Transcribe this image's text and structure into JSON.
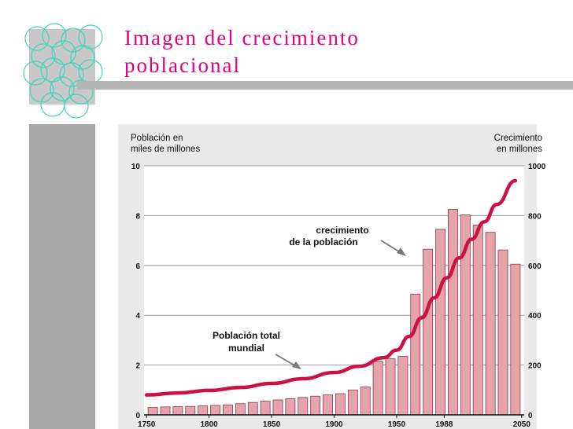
{
  "slide": {
    "title_line1": "Imagen del crecimiento",
    "title_line2": "poblacional"
  },
  "colors": {
    "accent": "#e6007e",
    "bar_fill": "#e7a3ab",
    "bar_stroke": "#8b3c45",
    "line": "#cc1144",
    "panel": "#e9e9e9",
    "deco_circles": "#3dd6b8"
  },
  "chart_data": {
    "type": "bar",
    "left_axis_title": [
      "Población en",
      "miles de millones"
    ],
    "right_axis_title": [
      "Crecimiento",
      "en millones"
    ],
    "x_ticks": [
      1750,
      1800,
      1850,
      1900,
      1950,
      1988,
      2050
    ],
    "xlim": [
      1748,
      2052
    ],
    "y_left_ticks": [
      0,
      2,
      4,
      6,
      8,
      10
    ],
    "y_left_lim": [
      0,
      10
    ],
    "y_right_ticks": [
      0,
      200,
      400,
      600,
      800,
      1000
    ],
    "y_right_lim": [
      0,
      1000
    ],
    "grid": true,
    "series": [
      {
        "name": "crecimiento de la población",
        "kind": "bar",
        "axis": "right",
        "x": [
          1755,
          1765,
          1775,
          1785,
          1795,
          1805,
          1815,
          1825,
          1835,
          1845,
          1855,
          1865,
          1875,
          1885,
          1895,
          1905,
          1915,
          1925,
          1935,
          1945,
          1955,
          1965,
          1975,
          1985,
          1995,
          2005,
          2015,
          2025,
          2035,
          2045
        ],
        "values": [
          30,
          32,
          33,
          34,
          36,
          38,
          40,
          45,
          50,
          55,
          60,
          65,
          70,
          75,
          80,
          85,
          100,
          112,
          215,
          225,
          235,
          485,
          665,
          745,
          825,
          803,
          762,
          733,
          662,
          605
        ]
      },
      {
        "name": "Población total mundial",
        "kind": "line",
        "axis": "left",
        "x": [
          1750,
          1775,
          1800,
          1825,
          1850,
          1875,
          1900,
          1920,
          1940,
          1950,
          1960,
          1970,
          1980,
          1990,
          2000,
          2010,
          2020,
          2030,
          2045
        ],
        "values": [
          0.8,
          0.88,
          0.98,
          1.1,
          1.26,
          1.45,
          1.7,
          1.95,
          2.3,
          2.6,
          3.15,
          3.9,
          4.7,
          5.5,
          6.3,
          7.05,
          7.75,
          8.45,
          9.4
        ]
      }
    ],
    "annotations": [
      {
        "target": "bar",
        "lines": [
          "crecimiento",
          "de la población"
        ]
      },
      {
        "target": "line",
        "lines": [
          "Población total",
          "mundial"
        ]
      }
    ]
  }
}
